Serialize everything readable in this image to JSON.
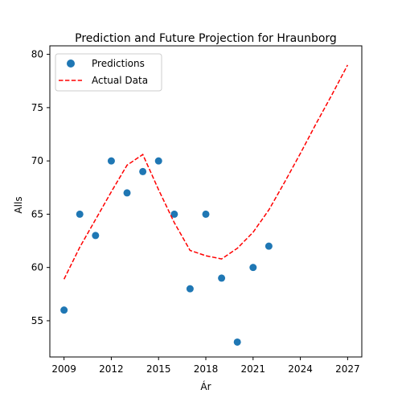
{
  "chart_data": {
    "type": "scatter",
    "title": "Prediction and Future Projection for Hraunborg",
    "xlabel": "Ár",
    "ylabel": "Alls",
    "xlim": [
      2008.1,
      2027.9
    ],
    "ylim": [
      51.6,
      80.8
    ],
    "xticks": [
      2009,
      2012,
      2015,
      2018,
      2021,
      2024,
      2027
    ],
    "yticks": [
      55,
      60,
      65,
      70,
      75,
      80
    ],
    "grid": false,
    "legend_position": "top-left",
    "series": [
      {
        "name": "Predictions",
        "kind": "scatter",
        "color": "#1f77b4",
        "x": [
          2009,
          2010,
          2011,
          2012,
          2013,
          2014,
          2015,
          2016,
          2017,
          2018,
          2019,
          2020,
          2021,
          2022
        ],
        "y": [
          56,
          65,
          63,
          70,
          67,
          69,
          70,
          65,
          58,
          65,
          59,
          53,
          60,
          62
        ]
      },
      {
        "name": "Actual Data",
        "kind": "line",
        "style": "dashed",
        "color": "#ff0000",
        "x": [
          2009,
          2010,
          2011,
          2012,
          2013,
          2014,
          2015,
          2016,
          2017,
          2018,
          2019,
          2020,
          2021,
          2022,
          2023,
          2024,
          2025,
          2026,
          2027
        ],
        "y": [
          58.9,
          61.9,
          64.5,
          67.1,
          69.6,
          70.6,
          67.3,
          64.2,
          61.6,
          61.1,
          60.8,
          61.8,
          63.3,
          65.4,
          68.0,
          70.7,
          73.5,
          76.2,
          79.0
        ]
      }
    ]
  }
}
